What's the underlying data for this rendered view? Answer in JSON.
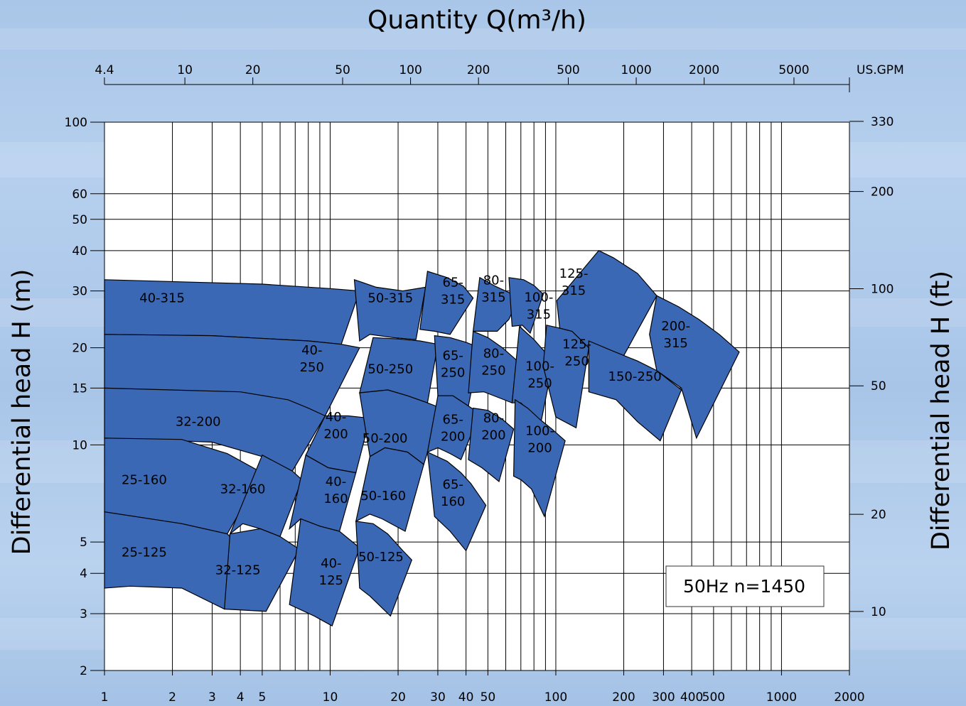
{
  "chart_data": {
    "type": "area",
    "title": "Quantity Q(m³/h)",
    "xlabel": "",
    "ylabel": "Differential head H (m)",
    "y2label": "Differential head H (ft)",
    "x_scale": "log",
    "y_scale": "log",
    "xlim": [
      1,
      2000
    ],
    "ylim": [
      2,
      100
    ],
    "grid": true,
    "x_ticks": [
      1,
      2,
      3,
      4,
      5,
      10,
      20,
      30,
      40,
      50,
      100,
      200,
      300,
      400,
      500,
      1000,
      2000
    ],
    "x_tick_labels": [
      "1",
      "2",
      "3",
      "4",
      "5",
      "10",
      "20",
      "30",
      "40",
      "50",
      "100",
      "200",
      "300",
      "400",
      "500",
      "1000",
      "2000"
    ],
    "y_ticks": [
      2,
      3,
      4,
      5,
      10,
      15,
      20,
      30,
      40,
      50,
      60,
      100
    ],
    "y_tick_labels": [
      "2",
      "3",
      "4",
      "5",
      "10",
      "15",
      "20",
      "30",
      "40",
      "50",
      "60",
      "100"
    ],
    "top_axis": {
      "unit": "US.GPM",
      "ticks": [
        4.4,
        10,
        20,
        50,
        100,
        200,
        500,
        1000,
        2000,
        5000
      ],
      "tick_labels": [
        "4.4",
        "10",
        "20",
        "50",
        "100",
        "200",
        "500",
        "1000",
        "2000",
        "5000"
      ]
    },
    "right_axis": {
      "ticks": [
        10,
        20,
        50,
        100,
        200,
        330
      ],
      "tick_labels": [
        "10",
        "20",
        "50",
        "100",
        "200",
        "330"
      ]
    },
    "annotation": "50Hz n=1450",
    "region_color": "#3a68b4",
    "regions": [
      {
        "label": "40-315",
        "label_at": [
          1.8,
          28.5
        ],
        "outline": [
          [
            1,
            32.5
          ],
          [
            5,
            31.5
          ],
          [
            10,
            30.5
          ],
          [
            13.5,
            30
          ],
          [
            11.2,
            20.5
          ],
          [
            8,
            21
          ],
          [
            3,
            21.8
          ],
          [
            1,
            22
          ]
        ]
      },
      {
        "label": "40-\n250",
        "label_at": [
          8.3,
          18.5
        ],
        "outline": [
          [
            1,
            22
          ],
          [
            3,
            21.8
          ],
          [
            8,
            21
          ],
          [
            11.2,
            20.5
          ],
          [
            13.5,
            20
          ],
          [
            9.5,
            12.3
          ],
          [
            7.5,
            13
          ],
          [
            4.5,
            14.2
          ],
          [
            1,
            15
          ]
        ]
      },
      {
        "label": "32-200",
        "label_at": [
          2.6,
          11.8
        ],
        "outline": [
          [
            1,
            15
          ],
          [
            4,
            14.6
          ],
          [
            6.5,
            13.8
          ],
          [
            8,
            13
          ],
          [
            9.5,
            12.3
          ],
          [
            6.8,
            8.3
          ],
          [
            5,
            9.2
          ],
          [
            3,
            10.2
          ],
          [
            1,
            10.5
          ]
        ]
      },
      {
        "label": "25-160",
        "label_at": [
          1.5,
          7.8
        ],
        "outline": [
          [
            1,
            10.5
          ],
          [
            2.2,
            10.4
          ],
          [
            3.5,
            9.4
          ],
          [
            5,
            8.2
          ],
          [
            3.5,
            5.3
          ],
          [
            2.2,
            5.7
          ],
          [
            1,
            6.2
          ]
        ]
      },
      {
        "label": "25-125",
        "label_at": [
          1.5,
          4.65
        ],
        "outline": [
          [
            1,
            6.2
          ],
          [
            2.2,
            5.7
          ],
          [
            3.5,
            5.3
          ],
          [
            4.3,
            4.6
          ],
          [
            3.4,
            3.1
          ],
          [
            2.2,
            3.6
          ],
          [
            1.3,
            3.65
          ],
          [
            1,
            3.6
          ]
        ]
      },
      {
        "label": "32-160",
        "label_at": [
          4.1,
          7.3
        ],
        "outline": [
          [
            5,
            9.3
          ],
          [
            6.8,
            8.3
          ],
          [
            7.5,
            7.8
          ],
          [
            6,
            5.2
          ],
          [
            4.9,
            5.5
          ],
          [
            4.1,
            5.7
          ],
          [
            3.6,
            5.3
          ]
        ]
      },
      {
        "label": "32-125",
        "label_at": [
          3.9,
          4.1
        ],
        "outline": [
          [
            3.6,
            5.3
          ],
          [
            4.9,
            5.5
          ],
          [
            6,
            5.2
          ],
          [
            7.3,
            4.75
          ],
          [
            5.2,
            3.05
          ],
          [
            3.4,
            3.1
          ]
        ]
      },
      {
        "label": "40-\n200",
        "label_at": [
          10.6,
          11.5
        ],
        "outline": [
          [
            9.5,
            12.3
          ],
          [
            12,
            12.3
          ],
          [
            15,
            12.1
          ],
          [
            13,
            8.2
          ],
          [
            9.8,
            8.5
          ],
          [
            7.8,
            9.3
          ]
        ]
      },
      {
        "label": "40-\n160",
        "label_at": [
          10.6,
          7.25
        ],
        "outline": [
          [
            7.8,
            9.3
          ],
          [
            9.8,
            8.5
          ],
          [
            13,
            8.2
          ],
          [
            11,
            5.4
          ],
          [
            9,
            5.6
          ],
          [
            7.4,
            5.9
          ],
          [
            6.6,
            5.5
          ]
        ]
      },
      {
        "label": "40-\n125",
        "label_at": [
          10.1,
          4.05
        ],
        "outline": [
          [
            7.4,
            5.9
          ],
          [
            9,
            5.6
          ],
          [
            11,
            5.4
          ],
          [
            13.5,
            4.8
          ],
          [
            10.2,
            2.75
          ],
          [
            8.5,
            2.95
          ],
          [
            6.6,
            3.2
          ]
        ]
      },
      {
        "label": "50-315",
        "label_at": [
          18.5,
          28.5
        ],
        "outline": [
          [
            12.8,
            32.5
          ],
          [
            16,
            30.8
          ],
          [
            21,
            30
          ],
          [
            26.5,
            30.8
          ],
          [
            24,
            21.2
          ],
          [
            19,
            21.5
          ],
          [
            15,
            22
          ],
          [
            13.5,
            21
          ]
        ]
      },
      {
        "label": "50-250",
        "label_at": [
          18.5,
          17.2
        ],
        "outline": [
          [
            15.5,
            21.5
          ],
          [
            20,
            21.3
          ],
          [
            25,
            21
          ],
          [
            30,
            20.5
          ],
          [
            27,
            13.5
          ],
          [
            22,
            14.2
          ],
          [
            18,
            14.8
          ],
          [
            13.5,
            14.5
          ]
        ]
      },
      {
        "label": "50-200",
        "label_at": [
          17.5,
          10.5
        ],
        "outline": [
          [
            13.5,
            14.5
          ],
          [
            18,
            14.8
          ],
          [
            22,
            14.2
          ],
          [
            27,
            13.5
          ],
          [
            31,
            13
          ],
          [
            26,
            8.7
          ],
          [
            22,
            9.5
          ],
          [
            17.5,
            9.8
          ],
          [
            15,
            9.2
          ]
        ]
      },
      {
        "label": "50-160",
        "label_at": [
          17.2,
          6.95
        ],
        "outline": [
          [
            15,
            9.2
          ],
          [
            17.5,
            9.8
          ],
          [
            22,
            9.5
          ],
          [
            26,
            8.7
          ],
          [
            21.5,
            5.4
          ],
          [
            17,
            5.9
          ],
          [
            15,
            6.1
          ],
          [
            13,
            5.8
          ]
        ]
      },
      {
        "label": "50-125",
        "label_at": [
          16.8,
          4.5
        ],
        "outline": [
          [
            13,
            5.8
          ],
          [
            15.5,
            5.7
          ],
          [
            18,
            5.3
          ],
          [
            21,
            4.7
          ],
          [
            23,
            4.4
          ],
          [
            18.5,
            2.95
          ],
          [
            15,
            3.4
          ],
          [
            13.5,
            3.6
          ]
        ]
      },
      {
        "label": "65-\n315",
        "label_at": [
          35,
          30
        ],
        "outline": [
          [
            27,
            34.5
          ],
          [
            33,
            33
          ],
          [
            39,
            31
          ],
          [
            43,
            28.5
          ],
          [
            34,
            22
          ],
          [
            29,
            22.5
          ],
          [
            25,
            22.8
          ]
        ]
      },
      {
        "label": "65-\n250",
        "label_at": [
          35,
          17.8
        ],
        "outline": [
          [
            29,
            21.8
          ],
          [
            34,
            21.5
          ],
          [
            40,
            20.8
          ],
          [
            46,
            20
          ],
          [
            41,
            13.2
          ],
          [
            35,
            14.2
          ],
          [
            30,
            14.2
          ]
        ]
      },
      {
        "label": "65-\n200",
        "label_at": [
          35,
          11.3
        ],
        "outline": [
          [
            30,
            14.2
          ],
          [
            35,
            14.2
          ],
          [
            41,
            13.2
          ],
          [
            46,
            12.5
          ],
          [
            38,
            9
          ],
          [
            34,
            9.4
          ],
          [
            30,
            9.8
          ],
          [
            27,
            9.5
          ]
        ]
      },
      {
        "label": "65-\n160",
        "label_at": [
          35,
          7.1
        ],
        "outline": [
          [
            27,
            9.5
          ],
          [
            33,
            8.9
          ],
          [
            38,
            8.2
          ],
          [
            42,
            7.6
          ],
          [
            49,
            6.5
          ],
          [
            40,
            4.7
          ],
          [
            34,
            5.4
          ],
          [
            29,
            6
          ]
        ]
      },
      {
        "label": "80-\n315",
        "label_at": [
          53,
          30.5
        ],
        "outline": [
          [
            46,
            33
          ],
          [
            54,
            31
          ],
          [
            63,
            29.5
          ],
          [
            69,
            29
          ],
          [
            62,
            24.5
          ],
          [
            55,
            22.5
          ],
          [
            43,
            22.5
          ]
        ]
      },
      {
        "label": "80-\n250",
        "label_at": [
          53,
          18.1
        ],
        "outline": [
          [
            43,
            22.5
          ],
          [
            50,
            21.5
          ],
          [
            58,
            20
          ],
          [
            67,
            18.3
          ],
          [
            64,
            13.5
          ],
          [
            56,
            14
          ],
          [
            48,
            14.6
          ],
          [
            41,
            14.5
          ]
        ]
      },
      {
        "label": "80-\n200",
        "label_at": [
          53,
          11.4
        ],
        "outline": [
          [
            43,
            13
          ],
          [
            50,
            12.8
          ],
          [
            58,
            12
          ],
          [
            65,
            11.2
          ],
          [
            56,
            7.7
          ],
          [
            47,
            8.5
          ],
          [
            41,
            9
          ]
        ]
      },
      {
        "label": "100-\n315",
        "label_at": [
          84,
          27
        ],
        "outline": [
          [
            62,
            33
          ],
          [
            72,
            32.5
          ],
          [
            80,
            31.2
          ],
          [
            88,
            29.3
          ],
          [
            77,
            22.2
          ],
          [
            71,
            23.5
          ],
          [
            64,
            23.3
          ]
        ]
      },
      {
        "label": "100-\n250",
        "label_at": [
          85,
          16.5
        ],
        "outline": [
          [
            69,
            23.3
          ],
          [
            80,
            21.2
          ],
          [
            89,
            19.5
          ],
          [
            97,
            18
          ],
          [
            85,
            11.3
          ],
          [
            78,
            12.5
          ],
          [
            70,
            13.5
          ],
          [
            64,
            13.5
          ]
        ]
      },
      {
        "label": "100-\n200",
        "label_at": [
          85,
          10.4
        ],
        "outline": [
          [
            66,
            13.8
          ],
          [
            75,
            13
          ],
          [
            85,
            12
          ],
          [
            96,
            11.2
          ],
          [
            110,
            10.3
          ],
          [
            89,
            6
          ],
          [
            78,
            7.3
          ],
          [
            70,
            7.8
          ],
          [
            65,
            8
          ]
        ]
      },
      {
        "label": "125-\n250",
        "label_at": [
          124,
          19.3
        ],
        "outline": [
          [
            91,
            23.5
          ],
          [
            104,
            23
          ],
          [
            118,
            22.5
          ],
          [
            135,
            21.6
          ],
          [
            140,
            20
          ],
          [
            123,
            11.3
          ],
          [
            100,
            12.2
          ],
          [
            88,
            17.5
          ]
        ]
      },
      {
        "label": "125-\n315",
        "label_at": [
          120,
          32
        ],
        "outline": [
          [
            101,
            28
          ],
          [
            155,
            40
          ],
          [
            180,
            38
          ],
          [
            230,
            34
          ],
          [
            280,
            29
          ],
          [
            195,
            18.3
          ],
          [
            140,
            20
          ],
          [
            118,
            22.5
          ],
          [
            104,
            23
          ]
        ]
      },
      {
        "label": "150-250",
        "label_at": [
          224,
          16.3
        ],
        "outline": [
          [
            140,
            21
          ],
          [
            180,
            19.5
          ],
          [
            230,
            18.2
          ],
          [
            280,
            17
          ],
          [
            360,
            14.8
          ],
          [
            290,
            10.3
          ],
          [
            230,
            11.8
          ],
          [
            185,
            13.8
          ],
          [
            140,
            14.6
          ]
        ]
      },
      {
        "label": "200-\n315",
        "label_at": [
          340,
          22
        ],
        "outline": [
          [
            280,
            29
          ],
          [
            350,
            26.8
          ],
          [
            430,
            24.5
          ],
          [
            530,
            22
          ],
          [
            650,
            19.4
          ],
          [
            420,
            10.5
          ],
          [
            360,
            15
          ],
          [
            280,
            17
          ],
          [
            260,
            22
          ]
        ]
      }
    ]
  }
}
